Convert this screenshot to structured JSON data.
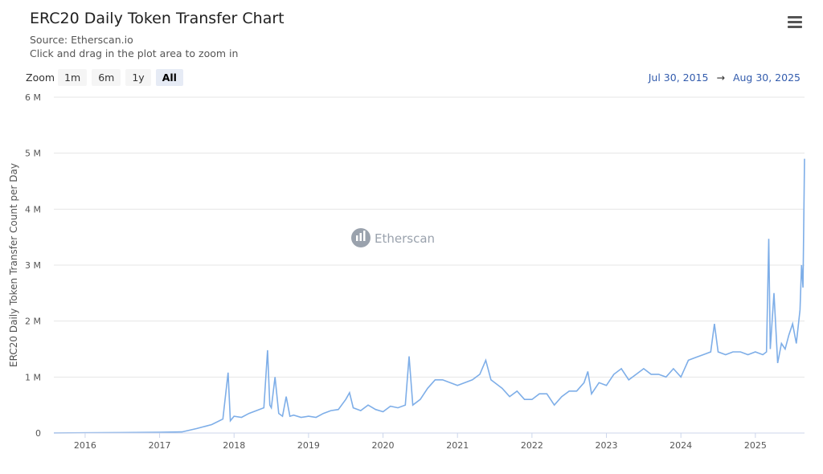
{
  "header": {
    "title": "ERC20 Daily Token Transfer Chart",
    "source": "Source: Etherscan.io",
    "hint": "Click and drag in the plot area to zoom in",
    "menu_icon": "hamburger-menu-icon"
  },
  "zoom": {
    "label": "Zoom",
    "buttons": [
      "1m",
      "6m",
      "1y",
      "All"
    ],
    "active": "All"
  },
  "range": {
    "from": "Jul 30, 2015",
    "arrow": "→",
    "to": "Aug 30, 2025"
  },
  "watermark": {
    "text": "Etherscan"
  },
  "colors": {
    "series": "#7eaee8",
    "grid": "#e6e6e6",
    "range_text": "#335cad"
  },
  "chart_data": {
    "type": "line",
    "title": "ERC20 Daily Token Transfer Chart",
    "subtitle": "Source: Etherscan.io",
    "xlabel": "",
    "ylabel": "ERC20 Daily Token Transfer Count per Day",
    "xlim": [
      2015.58,
      2025.66
    ],
    "ylim": [
      0,
      6000000
    ],
    "x_ticks": [
      "2016",
      "2017",
      "2018",
      "2019",
      "2020",
      "2021",
      "2022",
      "2023",
      "2024",
      "2025"
    ],
    "y_ticks": [
      "0",
      "1 M",
      "2 M",
      "3 M",
      "4 M",
      "5 M",
      "6 M"
    ],
    "grid": "horizontal",
    "series": [
      {
        "x": [
          2015.58,
          2016.0,
          2016.5,
          2017.0,
          2017.3,
          2017.5,
          2017.7,
          2017.85,
          2017.92,
          2017.95,
          2018.0,
          2018.1,
          2018.2,
          2018.3,
          2018.4,
          2018.45,
          2018.48,
          2018.5,
          2018.55,
          2018.6,
          2018.65,
          2018.7,
          2018.75,
          2018.8,
          2018.9,
          2019.0,
          2019.1,
          2019.2,
          2019.3,
          2019.4,
          2019.5,
          2019.55,
          2019.6,
          2019.7,
          2019.8,
          2019.9,
          2020.0,
          2020.1,
          2020.2,
          2020.3,
          2020.35,
          2020.4,
          2020.5,
          2020.6,
          2020.7,
          2020.8,
          2020.9,
          2021.0,
          2021.1,
          2021.2,
          2021.3,
          2021.38,
          2021.45,
          2021.5,
          2021.6,
          2021.7,
          2021.8,
          2021.9,
          2022.0,
          2022.1,
          2022.2,
          2022.3,
          2022.4,
          2022.5,
          2022.6,
          2022.7,
          2022.75,
          2022.8,
          2022.9,
          2023.0,
          2023.1,
          2023.2,
          2023.3,
          2023.4,
          2023.5,
          2023.6,
          2023.7,
          2023.8,
          2023.9,
          2024.0,
          2024.1,
          2024.2,
          2024.3,
          2024.4,
          2024.45,
          2024.5,
          2024.6,
          2024.7,
          2024.8,
          2024.9,
          2025.0,
          2025.1,
          2025.15,
          2025.18,
          2025.2,
          2025.25,
          2025.3,
          2025.35,
          2025.4,
          2025.45,
          2025.5,
          2025.55,
          2025.6,
          2025.62,
          2025.64,
          2025.66
        ],
        "values": [
          2000,
          5000,
          8000,
          15000,
          20000,
          80000,
          150000,
          250000,
          1080000,
          220000,
          300000,
          280000,
          350000,
          400000,
          450000,
          1480000,
          500000,
          450000,
          1000000,
          350000,
          300000,
          650000,
          300000,
          320000,
          280000,
          300000,
          280000,
          350000,
          400000,
          420000,
          600000,
          720000,
          450000,
          400000,
          500000,
          420000,
          380000,
          480000,
          450000,
          500000,
          1370000,
          500000,
          600000,
          800000,
          950000,
          950000,
          900000,
          850000,
          900000,
          950000,
          1050000,
          1300000,
          950000,
          900000,
          800000,
          650000,
          750000,
          600000,
          600000,
          700000,
          700000,
          500000,
          650000,
          750000,
          750000,
          900000,
          1100000,
          700000,
          900000,
          850000,
          1050000,
          1150000,
          950000,
          1050000,
          1150000,
          1050000,
          1050000,
          1000000,
          1150000,
          1000000,
          1300000,
          1350000,
          1400000,
          1450000,
          1950000,
          1450000,
          1400000,
          1450000,
          1450000,
          1400000,
          1450000,
          1400000,
          1450000,
          3470000,
          1500000,
          2500000,
          1250000,
          1600000,
          1500000,
          1750000,
          1950000,
          1600000,
          2200000,
          3000000,
          2600000,
          4900000
        ]
      }
    ]
  }
}
